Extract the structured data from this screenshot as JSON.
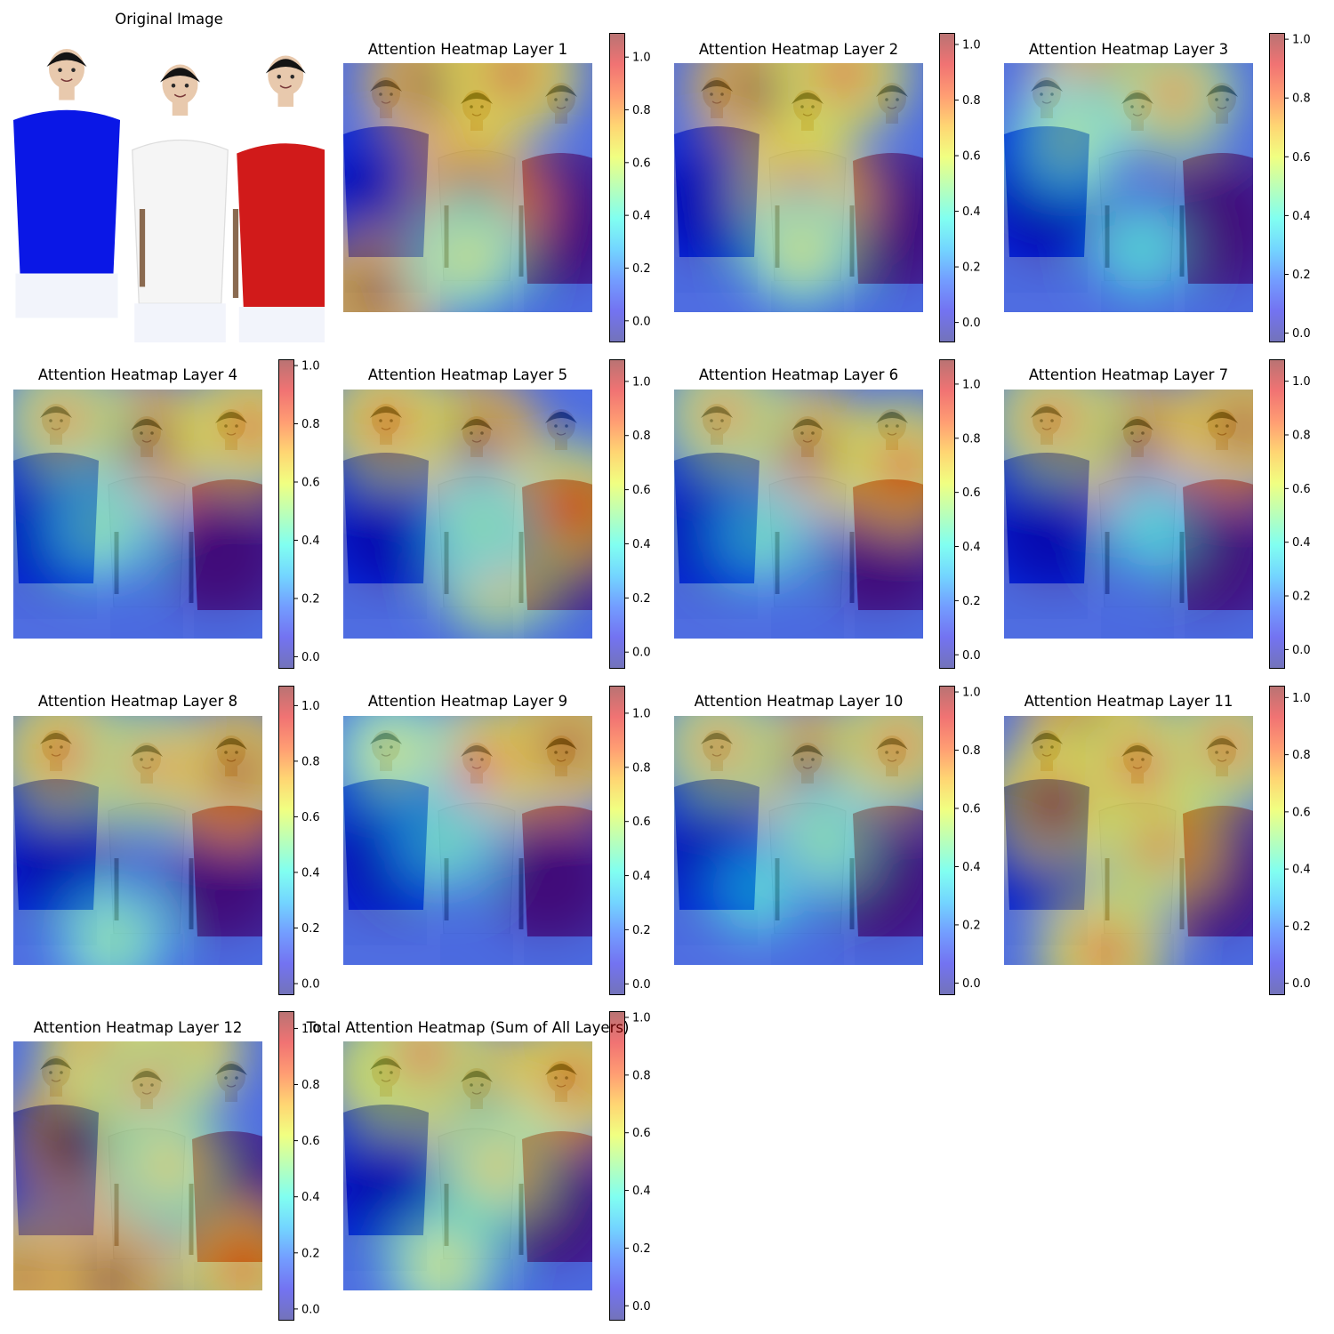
{
  "figure": {
    "original_title": "Original Image"
  },
  "colors": {
    "jet_low": "#00007f",
    "jet_mid": "#7fff7f",
    "jet_high": "#7f0000",
    "shirt_left": "#0a17e6",
    "shirt_middle": "#f5f5f5",
    "shirt_right": "#d11a1a",
    "skin": "#e8c9ad",
    "hair": "#141414"
  },
  "chart_data": [
    {
      "type": "heatmap",
      "title": "Attention Heatmap Layer 1",
      "colorbar_ticks": [
        "0.0",
        "0.2",
        "0.4",
        "0.6",
        "0.8",
        "1.0"
      ],
      "colorbar_range": [
        -0.08,
        1.09
      ],
      "hotspots": [
        {
          "x": 0.36,
          "y": 0.08,
          "v": 1.0
        },
        {
          "x": 0.68,
          "y": 0.04,
          "v": 0.9
        },
        {
          "x": 0.52,
          "y": 0.55,
          "v": 1.0
        },
        {
          "x": 0.12,
          "y": 0.93,
          "v": 1.0
        },
        {
          "x": 0.5,
          "y": 0.78,
          "v": 0.6
        }
      ]
    },
    {
      "type": "heatmap",
      "title": "Attention Heatmap Layer 2",
      "colorbar_ticks": [
        "0.0",
        "0.2",
        "0.4",
        "0.6",
        "0.8",
        "1.0"
      ],
      "colorbar_range": [
        -0.07,
        1.04
      ],
      "hotspots": [
        {
          "x": 0.34,
          "y": 0.1,
          "v": 1.0
        },
        {
          "x": 0.68,
          "y": 0.04,
          "v": 0.85
        },
        {
          "x": 0.51,
          "y": 0.52,
          "v": 0.9
        },
        {
          "x": 0.51,
          "y": 0.75,
          "v": 0.6
        }
      ]
    },
    {
      "type": "heatmap",
      "title": "Attention Heatmap Layer 3",
      "colorbar_ticks": [
        "0.0",
        "0.2",
        "0.4",
        "0.6",
        "0.8",
        "1.0"
      ],
      "colorbar_range": [
        -0.03,
        1.02
      ],
      "hotspots": [
        {
          "x": 0.38,
          "y": 0.1,
          "v": 0.95
        },
        {
          "x": 0.68,
          "y": 0.12,
          "v": 0.75
        },
        {
          "x": 0.26,
          "y": 0.3,
          "v": 0.55
        },
        {
          "x": 0.55,
          "y": 0.75,
          "v": 0.4
        }
      ]
    },
    {
      "type": "heatmap",
      "title": "Attention Heatmap Layer 4",
      "colorbar_ticks": [
        "0.0",
        "0.2",
        "0.4",
        "0.6",
        "0.8",
        "1.0"
      ],
      "colorbar_range": [
        -0.04,
        1.02
      ],
      "hotspots": [
        {
          "x": 0.52,
          "y": 0.22,
          "v": 1.0
        },
        {
          "x": 0.2,
          "y": 0.12,
          "v": 0.75
        },
        {
          "x": 0.95,
          "y": 0.15,
          "v": 0.85
        },
        {
          "x": 0.35,
          "y": 0.55,
          "v": 0.5
        }
      ]
    },
    {
      "type": "heatmap",
      "title": "Attention Heatmap Layer 5",
      "colorbar_ticks": [
        "0.0",
        "0.2",
        "0.4",
        "0.6",
        "0.8",
        "1.0"
      ],
      "colorbar_range": [
        -0.06,
        1.08
      ],
      "hotspots": [
        {
          "x": 0.53,
          "y": 0.22,
          "v": 1.0
        },
        {
          "x": 0.18,
          "y": 0.13,
          "v": 0.85
        },
        {
          "x": 0.93,
          "y": 0.47,
          "v": 0.8
        },
        {
          "x": 0.62,
          "y": 0.75,
          "v": 0.7
        },
        {
          "x": 0.55,
          "y": 0.55,
          "v": 0.5
        }
      ]
    },
    {
      "type": "heatmap",
      "title": "Attention Heatmap Layer 6",
      "colorbar_ticks": [
        "0.0",
        "0.2",
        "0.4",
        "0.6",
        "0.8",
        "1.0"
      ],
      "colorbar_range": [
        -0.05,
        1.09
      ],
      "hotspots": [
        {
          "x": 0.53,
          "y": 0.25,
          "v": 0.95
        },
        {
          "x": 0.2,
          "y": 0.1,
          "v": 0.75
        },
        {
          "x": 0.92,
          "y": 0.3,
          "v": 0.85
        },
        {
          "x": 0.35,
          "y": 0.58,
          "v": 0.45
        }
      ]
    },
    {
      "type": "heatmap",
      "title": "Attention Heatmap Layer 7",
      "colorbar_ticks": [
        "0.0",
        "0.2",
        "0.4",
        "0.6",
        "0.8",
        "1.0"
      ],
      "colorbar_range": [
        -0.07,
        1.08
      ],
      "hotspots": [
        {
          "x": 0.52,
          "y": 0.22,
          "v": 1.0
        },
        {
          "x": 0.2,
          "y": 0.12,
          "v": 0.8
        },
        {
          "x": 0.96,
          "y": 0.15,
          "v": 0.95
        },
        {
          "x": 0.6,
          "y": 0.55,
          "v": 0.4
        }
      ]
    },
    {
      "type": "heatmap",
      "title": "Attention Heatmap Layer 8",
      "colorbar_ticks": [
        "0.0",
        "0.2",
        "0.4",
        "0.6",
        "0.8",
        "1.0"
      ],
      "colorbar_range": [
        -0.04,
        1.07
      ],
      "hotspots": [
        {
          "x": 0.2,
          "y": 0.15,
          "v": 0.85
        },
        {
          "x": 0.55,
          "y": 0.2,
          "v": 0.75
        },
        {
          "x": 0.9,
          "y": 0.22,
          "v": 0.95
        },
        {
          "x": 0.4,
          "y": 0.9,
          "v": 0.5
        }
      ]
    },
    {
      "type": "heatmap",
      "title": "Attention Heatmap Layer 9",
      "colorbar_ticks": [
        "0.0",
        "0.2",
        "0.4",
        "0.6",
        "0.8",
        "1.0"
      ],
      "colorbar_range": [
        -0.04,
        1.1
      ],
      "hotspots": [
        {
          "x": 0.55,
          "y": 0.2,
          "v": 0.85
        },
        {
          "x": 0.9,
          "y": 0.12,
          "v": 0.95
        },
        {
          "x": 0.2,
          "y": 0.15,
          "v": 0.6
        },
        {
          "x": 0.4,
          "y": 0.5,
          "v": 0.45
        }
      ]
    },
    {
      "type": "heatmap",
      "title": "Attention Heatmap Layer 10",
      "colorbar_ticks": [
        "0.0",
        "0.2",
        "0.4",
        "0.6",
        "0.8",
        "1.0"
      ],
      "colorbar_range": [
        -0.04,
        1.02
      ],
      "hotspots": [
        {
          "x": 0.55,
          "y": 0.22,
          "v": 1.0
        },
        {
          "x": 0.18,
          "y": 0.12,
          "v": 0.75
        },
        {
          "x": 0.9,
          "y": 0.12,
          "v": 0.8
        },
        {
          "x": 0.6,
          "y": 0.5,
          "v": 0.5
        },
        {
          "x": 0.33,
          "y": 0.7,
          "v": 0.4
        }
      ]
    },
    {
      "type": "heatmap",
      "title": "Attention Heatmap Layer 11",
      "colorbar_ticks": [
        "0.0",
        "0.2",
        "0.4",
        "0.6",
        "0.8",
        "1.0"
      ],
      "colorbar_range": [
        -0.04,
        1.04
      ],
      "hotspots": [
        {
          "x": 0.35,
          "y": 0.05,
          "v": 1.0
        },
        {
          "x": 0.2,
          "y": 0.35,
          "v": 0.9
        },
        {
          "x": 0.62,
          "y": 0.5,
          "v": 0.8
        },
        {
          "x": 0.55,
          "y": 0.2,
          "v": 0.85
        },
        {
          "x": 0.4,
          "y": 0.95,
          "v": 0.85
        },
        {
          "x": 0.9,
          "y": 0.12,
          "v": 0.8
        }
      ]
    },
    {
      "type": "heatmap",
      "title": "Attention Heatmap Layer 12",
      "colorbar_ticks": [
        "0.0",
        "0.2",
        "0.4",
        "0.6",
        "0.8",
        "1.0"
      ],
      "colorbar_range": [
        -0.04,
        1.06
      ],
      "hotspots": [
        {
          "x": 0.25,
          "y": 0.4,
          "v": 1.0
        },
        {
          "x": 0.38,
          "y": 0.02,
          "v": 0.9
        },
        {
          "x": 0.65,
          "y": 0.03,
          "v": 0.9
        },
        {
          "x": 0.05,
          "y": 0.95,
          "v": 0.95
        },
        {
          "x": 0.38,
          "y": 0.96,
          "v": 1.0
        },
        {
          "x": 0.92,
          "y": 0.92,
          "v": 0.85
        },
        {
          "x": 0.55,
          "y": 0.2,
          "v": 0.75
        },
        {
          "x": 0.62,
          "y": 0.5,
          "v": 0.65
        }
      ]
    },
    {
      "type": "heatmap",
      "title": "Total Attention Heatmap (Sum of All Layers)",
      "colorbar_ticks": [
        "0.0",
        "0.2",
        "0.4",
        "0.6",
        "0.8",
        "1.0"
      ],
      "colorbar_range": [
        -0.05,
        1.02
      ],
      "hotspots": [
        {
          "x": 0.52,
          "y": 0.2,
          "v": 1.0
        },
        {
          "x": 0.2,
          "y": 0.12,
          "v": 0.85
        },
        {
          "x": 0.92,
          "y": 0.15,
          "v": 0.9
        },
        {
          "x": 0.32,
          "y": 0.05,
          "v": 0.8
        },
        {
          "x": 0.62,
          "y": 0.5,
          "v": 0.65
        },
        {
          "x": 0.4,
          "y": 0.9,
          "v": 0.6
        }
      ]
    }
  ]
}
